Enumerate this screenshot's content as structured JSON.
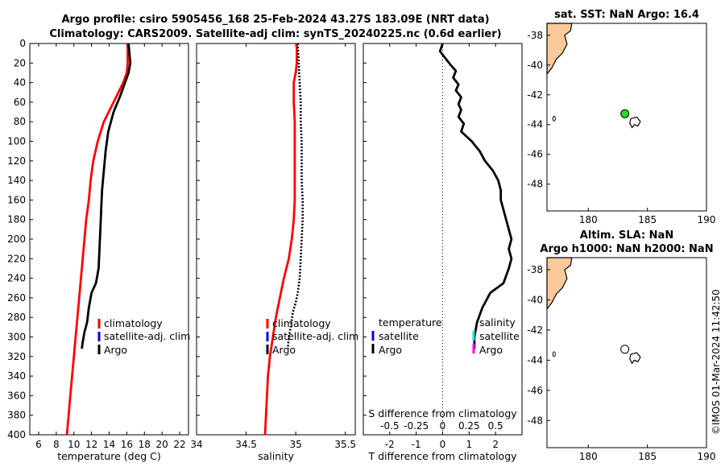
{
  "title": {
    "line1": "Argo profile: csiro 5905456_168 25-Feb-2024 43.27S 183.09E (NRT data)",
    "line2": "Climatology: CARS2009. Satellite-adj clim: synTS_20240225.nc (0.6d earlier)"
  },
  "watermark": "©IMOS 01-Mar-2024 11:42:50",
  "legend": {
    "climatology": "climatology",
    "satellite_adj": "satellite-adj. clim",
    "argo": "Argo",
    "temperature": "temperature",
    "salinity": "salinity",
    "satellite": "satellite"
  },
  "colors": {
    "climatology": "#ff0000",
    "satellite": "#0000ff",
    "argo": "#000000",
    "sal_satellite": "#00e5ee",
    "sal_argo": "#ff00ff",
    "land": "#f9c89b",
    "float_marker": "#22dd22"
  },
  "chart_data": [
    {
      "type": "line",
      "name": "temperature",
      "xlabel": "temperature (deg C)",
      "ylabel": "",
      "xlim": [
        5,
        23
      ],
      "ylim": [
        0,
        400
      ],
      "xticks": [
        6,
        8,
        10,
        12,
        14,
        16,
        18,
        20,
        22
      ],
      "yticks": [
        0,
        20,
        40,
        60,
        80,
        100,
        120,
        140,
        160,
        180,
        200,
        220,
        240,
        260,
        280,
        300,
        320,
        340,
        360,
        380,
        400
      ],
      "series": [
        {
          "name": "climatology",
          "color": "#ff0000",
          "x": [
            16.1,
            16.1,
            16.0,
            15.6,
            14.5,
            13.4,
            12.7,
            12.2,
            11.9,
            11.7,
            11.4,
            11.2,
            11.0,
            10.8,
            10.6,
            10.4,
            10.2,
            10.0,
            9.8,
            9.6,
            9.4,
            9.2
          ],
          "y": [
            0,
            20,
            30,
            40,
            60,
            80,
            100,
            120,
            140,
            160,
            180,
            200,
            220,
            240,
            260,
            280,
            300,
            320,
            340,
            360,
            380,
            400
          ]
        },
        {
          "name": "Argo",
          "color": "#000000",
          "x": [
            16.2,
            16.3,
            16.4,
            16.2,
            15.8,
            15.2,
            14.5,
            13.9,
            13.6,
            13.4,
            13.2,
            13.1,
            13.0,
            12.9,
            12.8,
            12.5,
            12.0,
            11.7,
            11.5,
            11.2,
            11.0,
            10.9
          ],
          "y": [
            0,
            10,
            20,
            30,
            40,
            55,
            70,
            90,
            110,
            130,
            150,
            170,
            190,
            210,
            230,
            245,
            255,
            270,
            285,
            295,
            305,
            312
          ]
        }
      ]
    },
    {
      "type": "line",
      "name": "salinity",
      "xlabel": "salinity",
      "xlim": [
        34.0,
        35.6
      ],
      "ylim": [
        0,
        400
      ],
      "xticks": [
        34,
        34.5,
        35,
        35.5
      ],
      "series": [
        {
          "name": "climatology",
          "color": "#ff0000",
          "x": [
            35.01,
            35.01,
            35.0,
            34.98,
            34.98,
            34.99,
            34.99,
            34.99,
            34.99,
            34.99,
            34.98,
            34.96,
            34.93,
            34.88,
            34.84,
            34.8,
            34.77,
            34.74,
            34.72,
            34.71,
            34.7,
            34.69
          ],
          "y": [
            0,
            20,
            30,
            40,
            60,
            80,
            100,
            120,
            140,
            160,
            180,
            200,
            220,
            240,
            260,
            280,
            300,
            320,
            340,
            360,
            380,
            400
          ]
        },
        {
          "name": "Argo",
          "color": "#000000",
          "dotted": true,
          "x": [
            35.02,
            35.03,
            35.04,
            35.05,
            35.05,
            35.06,
            35.06,
            35.06,
            35.07,
            35.07,
            35.06,
            35.05,
            35.04,
            35.02,
            35.0,
            34.97,
            34.95,
            34.93,
            34.92
          ],
          "y": [
            0,
            20,
            40,
            60,
            80,
            100,
            120,
            140,
            160,
            180,
            200,
            220,
            240,
            255,
            265,
            275,
            290,
            300,
            312
          ]
        }
      ]
    },
    {
      "type": "line",
      "name": "difference",
      "xlabel": "T difference from climatology",
      "xlabel_top": "S difference from climatology",
      "xlim": [
        -3,
        3
      ],
      "ylim": [
        0,
        400
      ],
      "xticks": [
        -2,
        -1,
        0,
        1,
        2
      ],
      "xticks_top_labels": [
        "-0.5",
        "-0.25",
        "0",
        "0.25",
        "0.5"
      ],
      "xticks_top_values": [
        -2,
        -1,
        0,
        1,
        2
      ],
      "series": [
        {
          "name": "temperature diff",
          "color": "#000000",
          "x": [
            0.0,
            -0.1,
            0.1,
            0.3,
            0.5,
            0.4,
            0.6,
            0.5,
            0.7,
            0.6,
            0.7,
            0.6,
            0.8,
            0.7,
            0.9,
            1.1,
            1.4,
            1.6,
            1.9,
            2.1,
            2.2,
            2.2,
            2.3,
            2.4,
            2.5,
            2.6,
            2.5,
            2.6,
            2.5,
            2.3,
            1.8,
            1.5,
            1.3,
            1.2,
            1.2
          ],
          "y": [
            0,
            8,
            15,
            22,
            28,
            35,
            42,
            48,
            55,
            62,
            68,
            75,
            82,
            90,
            95,
            100,
            110,
            120,
            130,
            140,
            150,
            160,
            170,
            180,
            190,
            200,
            210,
            220,
            230,
            245,
            255,
            270,
            285,
            300,
            312
          ]
        }
      ],
      "annotations": {
        "temperature_label": "temperature",
        "salinity_label": "salinity"
      }
    },
    {
      "type": "scatter",
      "name": "map_sst",
      "title": "sat. SST: NaN Argo: 16.4",
      "xlim": [
        176.5,
        190
      ],
      "ylim": [
        -49.8,
        -37.2
      ],
      "xticks": [
        180,
        185,
        190
      ],
      "yticks": [
        -38,
        -40,
        -42,
        -44,
        -46,
        -48
      ],
      "points": [
        {
          "lon": 183.09,
          "lat": -43.27,
          "color": "#22dd22"
        }
      ]
    },
    {
      "type": "scatter",
      "name": "map_sla",
      "title_line1": "Altim. SLA: NaN",
      "title_line2": "Argo h1000: NaN h2000: NaN",
      "xlim": [
        176.5,
        190
      ],
      "ylim": [
        -49.8,
        -37.2
      ],
      "xticks": [
        180,
        185,
        190
      ],
      "yticks": [
        -38,
        -40,
        -42,
        -44,
        -46,
        -48
      ],
      "points": [
        {
          "lon": 183.09,
          "lat": -43.27,
          "color": "#ffffff"
        }
      ]
    }
  ]
}
